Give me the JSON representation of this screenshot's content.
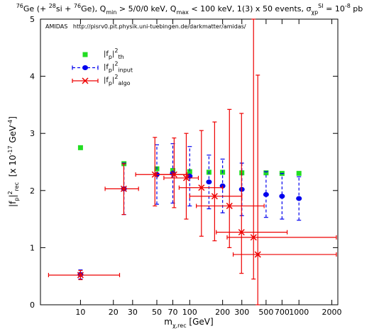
{
  "chart_data": {
    "type": "scatter",
    "title": [
      {
        "text": "76",
        "pos": "sup"
      },
      {
        "text": "Ge (+ "
      },
      {
        "text": "28",
        "pos": "sup"
      },
      {
        "text": "si + "
      },
      {
        "text": "76",
        "pos": "sup"
      },
      {
        "text": "Ge), Q"
      },
      {
        "text": "min",
        "pos": "sub"
      },
      {
        "text": " > 5/0/0 keV, Q"
      },
      {
        "text": "max",
        "pos": "sub"
      },
      {
        "text": " < 100 keV, 1(3) x 50 events, σ"
      },
      {
        "text": "χp",
        "pos": "sub"
      },
      {
        "text": "SI",
        "pos": "sup"
      },
      {
        "text": " = 10"
      },
      {
        "text": "-8",
        "pos": "sup"
      },
      {
        "text": " pb"
      }
    ],
    "annotation": "AMIDAS   http://pisrv0.pit.physik.uni-tuebingen.de/darkmatter/amidas/",
    "x_label": [
      {
        "text": "m"
      },
      {
        "text": "χ,rec",
        "pos": "sub"
      },
      {
        "text": " [GeV]"
      }
    ],
    "y_label": [
      {
        "text": "|f"
      },
      {
        "text": "p",
        "pos": "sub"
      },
      {
        "text": "|"
      },
      {
        "text": "2",
        "pos": "sup"
      },
      {
        "text": "rec",
        "pos": "sub"
      },
      {
        "text": "  [x 10"
      },
      {
        "text": "-17",
        "pos": "sup"
      },
      {
        "text": " GeV"
      },
      {
        "text": "-4",
        "pos": "sup"
      },
      {
        "text": "]"
      }
    ],
    "xlog": true,
    "xlim": [
      4.3,
      2270
    ],
    "ylim": [
      0,
      5
    ],
    "xticks": [
      10,
      20,
      30,
      50,
      70,
      100,
      200,
      300,
      500,
      700,
      1000,
      2000
    ],
    "yticks": [
      0,
      1,
      2,
      3,
      4,
      5
    ],
    "legend": "upper-left",
    "series": [
      {
        "name": [
          {
            "text": "|f"
          },
          {
            "text": "p",
            "pos": "sub"
          },
          {
            "text": "|"
          },
          {
            "text": "2",
            "pos": "sup"
          },
          {
            "text": "th",
            "pos": "sub"
          }
        ],
        "color": "#22dd22",
        "marker": "square",
        "x": [
          10,
          25,
          50,
          70,
          100,
          150,
          200,
          300,
          500,
          700,
          1000
        ],
        "values": [
          2.75,
          2.47,
          2.38,
          2.35,
          2.33,
          2.32,
          2.32,
          2.31,
          2.31,
          2.3,
          2.3
        ]
      },
      {
        "name": [
          {
            "text": "|f"
          },
          {
            "text": "p",
            "pos": "sub"
          },
          {
            "text": "|"
          },
          {
            "text": "2",
            "pos": "sup"
          },
          {
            "text": "input",
            "pos": "sub"
          }
        ],
        "color": "#0000ee",
        "marker": "circle",
        "x": [
          10,
          25,
          50,
          70,
          100,
          150,
          200,
          300,
          500,
          700,
          1000
        ],
        "values": [
          0.53,
          2.03,
          2.28,
          2.3,
          2.25,
          2.15,
          2.08,
          2.02,
          1.93,
          1.9,
          1.86
        ],
        "err": [
          0.08,
          0.45,
          0.52,
          0.52,
          0.52,
          0.47,
          0.47,
          0.46,
          0.4,
          0.4,
          0.38
        ]
      },
      {
        "name": [
          {
            "text": "|f"
          },
          {
            "text": "p",
            "pos": "sub"
          },
          {
            "text": "|"
          },
          {
            "text": "2",
            "pos": "sup"
          },
          {
            "text": "algo",
            "pos": "sub"
          }
        ],
        "color": "#ee0000",
        "marker": "cross",
        "x": [
          10,
          24.9,
          48,
          72,
          93,
          128,
          169,
          231,
          298,
          384,
          420
        ],
        "values": [
          0.52,
          2.03,
          2.28,
          2.28,
          2.22,
          2.05,
          1.9,
          1.73,
          1.27,
          1.18,
          0.88
        ],
        "x_low": [
          5.1,
          16.8,
          32,
          49,
          58,
          80,
          100,
          115,
          175,
          220,
          250
        ],
        "x_high": [
          22.8,
          34,
          93,
          95,
          120,
          200,
          300,
          480,
          780,
          2200,
          2200
        ],
        "y_low": [
          0.44,
          1.58,
          1.73,
          1.7,
          1.5,
          1.2,
          1.12,
          1.0,
          0.55,
          0.45,
          0
        ],
        "y_high": [
          0.6,
          2.47,
          2.93,
          2.92,
          3.0,
          3.05,
          3.2,
          3.42,
          3.35,
          5.0,
          4.02
        ]
      }
    ]
  }
}
